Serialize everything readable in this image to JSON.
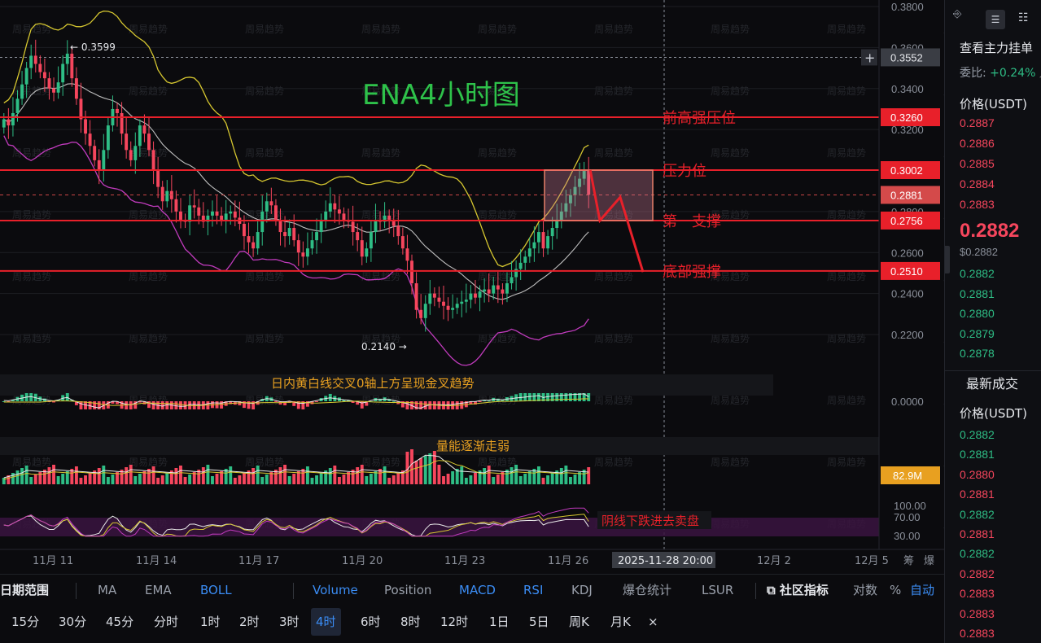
{
  "chart_data": {
    "type": "candlestick",
    "title": "ENA4小时图",
    "x_ticks": [
      "11月 11",
      "11月 14",
      "11月 17",
      "11月 20",
      "11月 23",
      "11月 26",
      "12月 2",
      "12月 5"
    ],
    "x_extra": [
      "筹",
      "爆"
    ],
    "crosshair_time": "2025-11-28 20:00",
    "crosshair_price": "0.3552",
    "y_ticks": [
      "0.3800",
      "0.3600",
      "0.3400",
      "0.3200",
      "0.3000",
      "0.2800",
      "0.2600",
      "0.2400",
      "0.2200"
    ],
    "ylim": [
      0.21,
      0.385
    ],
    "price_labels": [
      {
        "value": "0.3260",
        "color": "#e8202a"
      },
      {
        "value": "0.3002",
        "color": "#e8202a"
      },
      {
        "value": "0.2881",
        "color": "#d44a4a"
      },
      {
        "value": "0.2756",
        "color": "#e8202a"
      },
      {
        "value": "0.2510",
        "color": "#e8202a"
      }
    ],
    "levels": [
      {
        "price": 0.326,
        "label": "前高强压位"
      },
      {
        "price": 0.3002,
        "label": "压力位"
      },
      {
        "price": 0.2756,
        "label": "第一支撑"
      },
      {
        "price": 0.251,
        "label": "底部强撑"
      }
    ],
    "high_mark": {
      "value": "0.3599",
      "text": "← 0.3599"
    },
    "low_mark": {
      "value": "0.2140",
      "text": "0.2140 →"
    },
    "closes": [
      0.325,
      0.322,
      0.328,
      0.335,
      0.342,
      0.35,
      0.356,
      0.352,
      0.348,
      0.345,
      0.34,
      0.338,
      0.343,
      0.352,
      0.357,
      0.345,
      0.335,
      0.325,
      0.318,
      0.312,
      0.305,
      0.3,
      0.31,
      0.322,
      0.33,
      0.328,
      0.318,
      0.31,
      0.305,
      0.312,
      0.322,
      0.318,
      0.31,
      0.3,
      0.292,
      0.285,
      0.29,
      0.286,
      0.28,
      0.276,
      0.275,
      0.283,
      0.282,
      0.278,
      0.275,
      0.278,
      0.28,
      0.278,
      0.276,
      0.279,
      0.28,
      0.277,
      0.274,
      0.268,
      0.265,
      0.262,
      0.27,
      0.28,
      0.285,
      0.283,
      0.276,
      0.27,
      0.268,
      0.272,
      0.266,
      0.26,
      0.258,
      0.262,
      0.266,
      0.27,
      0.276,
      0.28,
      0.284,
      0.281,
      0.279,
      0.276,
      0.275,
      0.27,
      0.266,
      0.258,
      0.262,
      0.27,
      0.276,
      0.275,
      0.278,
      0.276,
      0.273,
      0.268,
      0.262,
      0.256,
      0.245,
      0.232,
      0.228,
      0.235,
      0.24,
      0.238,
      0.236,
      0.234,
      0.232,
      0.233,
      0.235,
      0.236,
      0.237,
      0.24,
      0.238,
      0.241,
      0.242,
      0.24,
      0.244,
      0.242,
      0.24,
      0.245,
      0.248,
      0.252,
      0.255,
      0.258,
      0.262,
      0.265,
      0.27,
      0.262,
      0.268,
      0.272,
      0.276,
      0.28,
      0.284,
      0.288,
      0.292,
      0.296,
      0.3,
      0.2882
    ],
    "macd_note": "日内黄白线交叉0轴上方呈现金叉趋势",
    "macd_zero": "0.0000",
    "volume_note": "量能逐渐走弱",
    "volume_label": "82.9M",
    "rsi_note": "阴线下跌进去卖盘",
    "rsi_ticks": [
      "100.00",
      "70.00",
      "30.00"
    ],
    "watermark": "周易趋势"
  },
  "panel": {
    "toolbar_icon_1": "⎆",
    "toolbar_icon_2": "☰",
    "toolbar_icon_3": "☷",
    "title": "查看主力挂单",
    "ratio_label": "委比:",
    "ratio_value": "+0.24%",
    "ratio_arrow": "◢",
    "price_header": "价格(USDT)",
    "asks": [
      "0.2887",
      "0.2886",
      "0.2885",
      "0.2884",
      "0.2883"
    ],
    "last_price": "0.2882",
    "last_price_usd": "$0.2882",
    "bids": [
      "0.2882",
      "0.2881",
      "0.2880",
      "0.2879",
      "0.2878"
    ],
    "trades_title": "最新成交",
    "trades_header": "价格(USDT)",
    "trades": [
      {
        "p": "0.2882",
        "c": "green"
      },
      {
        "p": "0.2881",
        "c": "green"
      },
      {
        "p": "0.2880",
        "c": "red"
      },
      {
        "p": "0.2881",
        "c": "red"
      },
      {
        "p": "0.2882",
        "c": "green"
      },
      {
        "p": "0.2881",
        "c": "red"
      },
      {
        "p": "0.2882",
        "c": "green"
      },
      {
        "p": "0.2882",
        "c": "red"
      },
      {
        "p": "0.2883",
        "c": "red"
      },
      {
        "p": "0.2883",
        "c": "red"
      },
      {
        "p": "0.2883",
        "c": "red"
      }
    ]
  },
  "toolbar": {
    "date_range": "日期范围",
    "indicators": [
      {
        "label": "MA",
        "style": ""
      },
      {
        "label": "EMA",
        "style": ""
      },
      {
        "label": "BOLL",
        "style": "blue"
      },
      {
        "label": "Volume",
        "style": "blue"
      },
      {
        "label": "Position",
        "style": ""
      },
      {
        "label": "MACD",
        "style": "blue"
      },
      {
        "label": "RSI",
        "style": "blue"
      },
      {
        "label": "KDJ",
        "style": ""
      },
      {
        "label": "爆仓统计",
        "style": ""
      },
      {
        "label": "LSUR",
        "style": ""
      }
    ],
    "community": "社区指标",
    "log": "对数",
    "percent": "%",
    "auto": "自动",
    "intervals": [
      "15分",
      "30分",
      "45分",
      "分时",
      "1时",
      "2时",
      "3时",
      "4时",
      "6时",
      "8时",
      "12时",
      "1日",
      "5日",
      "周K",
      "月K"
    ],
    "active_interval": "4时",
    "close": "×"
  }
}
